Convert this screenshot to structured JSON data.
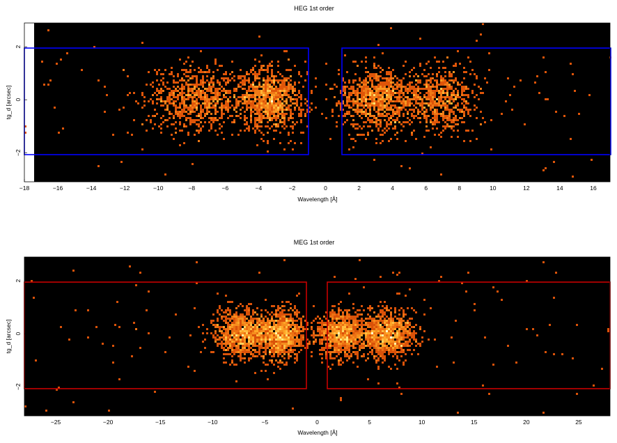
{
  "chart_data": [
    {
      "type": "heatmap",
      "title": "HEG 1st order",
      "xlabel": "Wavelength [Å]",
      "ylabel": "tg_d [arcsec]",
      "xlim": [
        -18,
        17
      ],
      "ylim": [
        -3.1,
        2.9
      ],
      "xticks": [
        -18,
        -16,
        -14,
        -12,
        -10,
        -8,
        -6,
        -4,
        -2,
        0,
        2,
        4,
        6,
        8,
        10,
        12,
        14,
        16
      ],
      "yticks": [
        -2,
        0,
        2
      ],
      "background_color": "#000000",
      "frame_color": "#0000ff",
      "extraction_regions": [
        {
          "x": [
            -17.4,
            -1.0
          ],
          "y": [
            -2.04,
            2.04
          ]
        },
        {
          "x": [
            1.0,
            17.0
          ],
          "y": [
            -2.04,
            2.04
          ]
        }
      ],
      "clusters": [
        {
          "center": -7.5,
          "width": 1.6,
          "weight": 0.9
        },
        {
          "center": -3.3,
          "width": 1.0,
          "weight": 1.0
        },
        {
          "center": 3.1,
          "width": 1.2,
          "weight": 1.0
        },
        {
          "center": 6.8,
          "width": 1.1,
          "weight": 0.7
        }
      ],
      "y_spread": 0.6
    },
    {
      "type": "heatmap",
      "title": "MEG 1st order",
      "xlabel": "Wavelength [Å]",
      "ylabel": "tg_d [arcsec]",
      "xlim": [
        -28,
        28
      ],
      "ylim": [
        -3.1,
        2.9
      ],
      "xticks": [
        -25,
        -20,
        -15,
        -10,
        -5,
        0,
        5,
        10,
        15,
        20,
        25
      ],
      "yticks": [
        -2,
        0,
        2
      ],
      "background_color": "#000000",
      "frame_color": "#c80000",
      "extraction_regions": [
        {
          "x": [
            -28,
            -1.0
          ],
          "y": [
            -2.04,
            2.04
          ]
        },
        {
          "x": [
            1.0,
            28
          ],
          "y": [
            -2.04,
            2.04
          ]
        }
      ],
      "clusters": [
        {
          "center": -7.0,
          "width": 1.4,
          "weight": 1.0
        },
        {
          "center": -3.4,
          "width": 1.0,
          "weight": 0.9
        },
        {
          "center": 2.3,
          "width": 1.2,
          "weight": 0.9
        },
        {
          "center": 6.7,
          "width": 1.3,
          "weight": 1.0
        }
      ],
      "y_spread": 0.45
    }
  ]
}
